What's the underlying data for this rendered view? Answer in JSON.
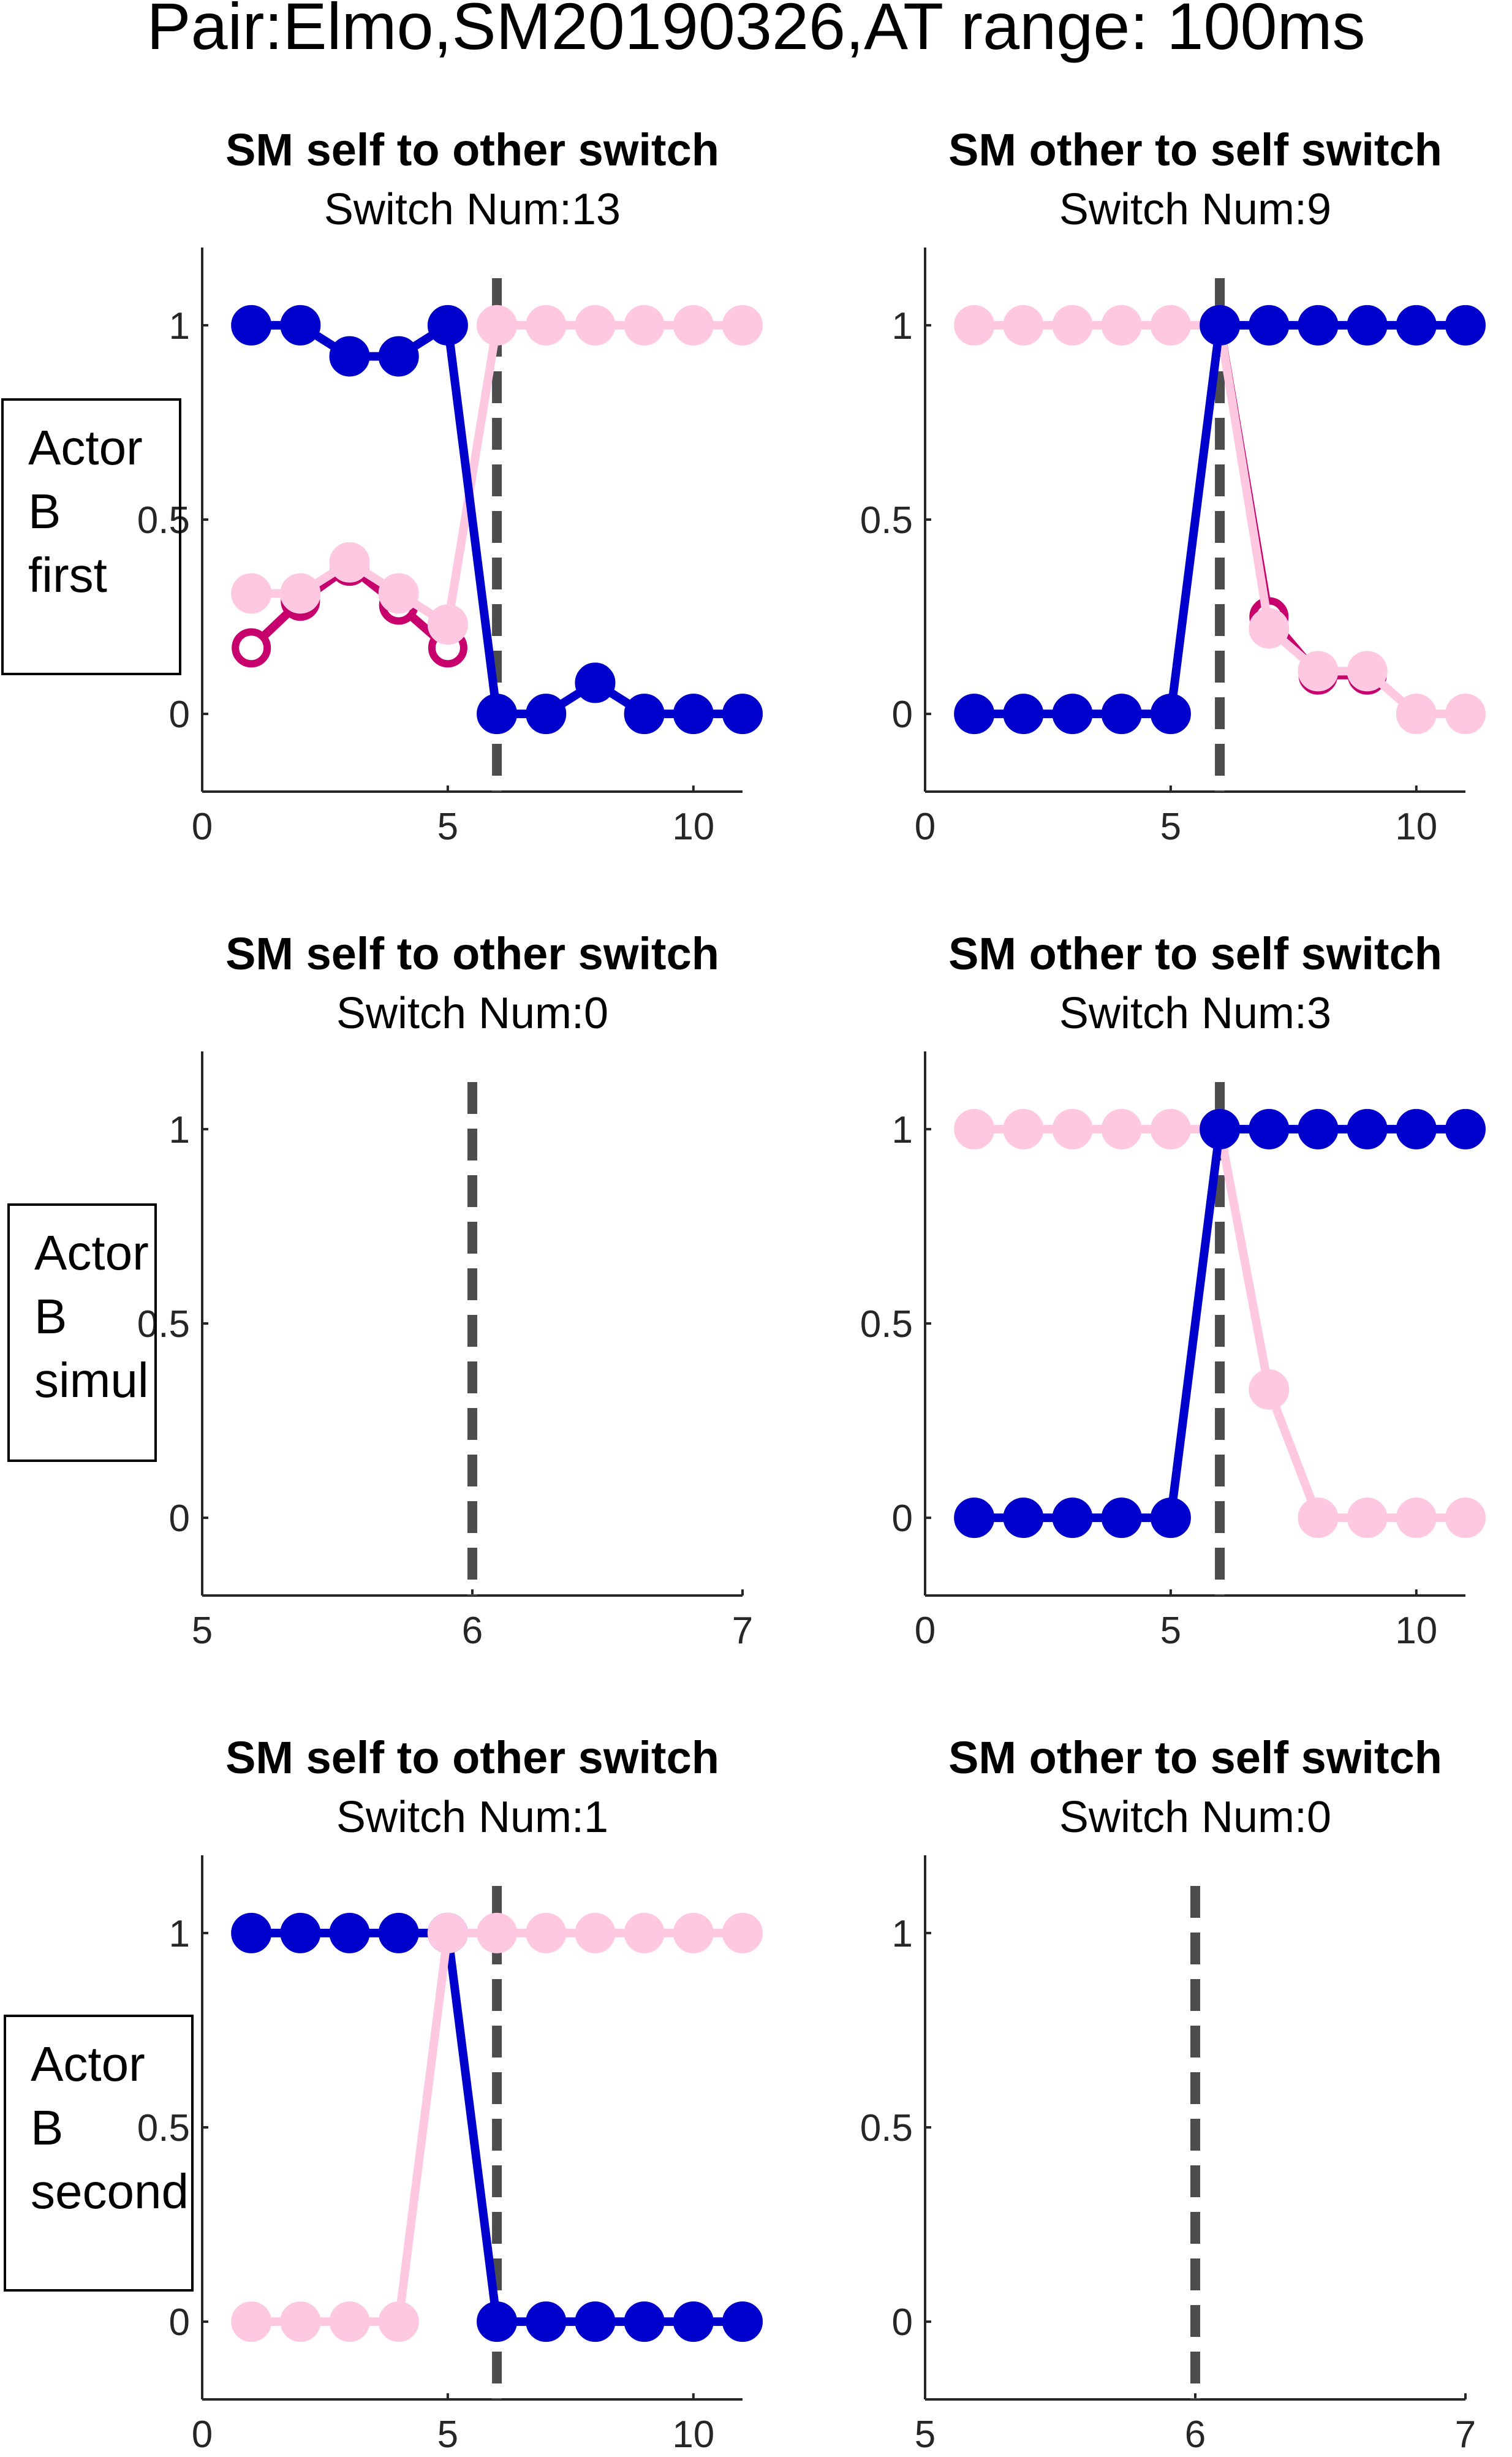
{
  "figure_title": "Pair:Elmo,SM20190326,AT range: 100ms",
  "row_labels": [
    [
      "Actor",
      "B",
      "first"
    ],
    [
      "Actor",
      "B",
      "simul"
    ],
    [
      "Actor",
      "B",
      "second"
    ]
  ],
  "colors": {
    "dark_blue": "#0000cc",
    "light_pink": "#ffc8e1",
    "dark_magenta": "#c8006e",
    "switch_line": "#4d4d4d"
  },
  "chart_data": [
    {
      "type": "line",
      "title": "SM self to other switch",
      "subtitle": "Switch Num:13",
      "xlim": [
        0,
        11
      ],
      "ylim": [
        -0.2,
        1.2
      ],
      "xticks": [
        "0",
        "5",
        "10"
      ],
      "xtick_values": [
        0,
        5,
        10
      ],
      "yticks": [
        "0",
        "0.5",
        "1"
      ],
      "ytick_values": [
        0,
        0.5,
        1
      ],
      "switch_x": 6,
      "series": [
        {
          "color": "dark_magenta",
          "marker": "open",
          "x": [
            1,
            2,
            3,
            4,
            5
          ],
          "y": [
            0.17,
            0.29,
            0.38,
            0.28,
            0.17
          ]
        },
        {
          "color": "light_pink",
          "marker": "filled",
          "x": [
            1,
            2,
            3,
            4,
            5,
            6,
            7,
            8,
            9,
            10,
            11
          ],
          "y": [
            0.31,
            0.31,
            0.39,
            0.31,
            0.23,
            1,
            1,
            1,
            1,
            1,
            1
          ]
        },
        {
          "color": "dark_blue",
          "marker": "filled",
          "x": [
            1,
            2,
            3,
            4,
            5,
            6,
            7,
            8,
            9,
            10,
            11
          ],
          "y": [
            1,
            1,
            0.92,
            0.92,
            1,
            0,
            0,
            0.08,
            0,
            0,
            0
          ]
        }
      ]
    },
    {
      "type": "line",
      "title": "SM other to self switch",
      "subtitle": "Switch Num:9",
      "xlim": [
        0,
        11
      ],
      "ylim": [
        -0.2,
        1.2
      ],
      "xticks": [
        "0",
        "5",
        "10"
      ],
      "xtick_values": [
        0,
        5,
        10
      ],
      "yticks": [
        "0",
        "0.5",
        "1"
      ],
      "ytick_values": [
        0,
        0.5,
        1
      ],
      "switch_x": 6,
      "series": [
        {
          "color": "dark_magenta",
          "marker": "open",
          "x": [
            6,
            7,
            8,
            9
          ],
          "y": [
            1,
            0.25,
            0.1,
            0.1
          ]
        },
        {
          "color": "light_pink",
          "marker": "filled",
          "x": [
            1,
            2,
            3,
            4,
            5,
            6,
            7,
            8,
            9,
            10,
            11
          ],
          "y": [
            1,
            1,
            1,
            1,
            1,
            1,
            0.22,
            0.11,
            0.11,
            0,
            0
          ]
        },
        {
          "color": "dark_blue",
          "marker": "filled",
          "x": [
            1,
            2,
            3,
            4,
            5,
            6,
            7,
            8,
            9,
            10,
            11
          ],
          "y": [
            0,
            0,
            0,
            0,
            0,
            1,
            1,
            1,
            1,
            1,
            1
          ]
        }
      ]
    },
    {
      "type": "line",
      "title": "SM self to other switch",
      "subtitle": "Switch Num:0",
      "xlim": [
        5,
        7
      ],
      "ylim": [
        -0.2,
        1.2
      ],
      "xticks": [
        "5",
        "6",
        "7"
      ],
      "xtick_values": [
        5,
        6,
        7
      ],
      "yticks": [
        "0",
        "0.5",
        "1"
      ],
      "ytick_values": [
        0,
        0.5,
        1
      ],
      "switch_x": 6,
      "series": []
    },
    {
      "type": "line",
      "title": "SM other to self switch",
      "subtitle": "Switch Num:3",
      "xlim": [
        0,
        11
      ],
      "ylim": [
        -0.2,
        1.2
      ],
      "xticks": [
        "0",
        "5",
        "10"
      ],
      "xtick_values": [
        0,
        5,
        10
      ],
      "yticks": [
        "0",
        "0.5",
        "1"
      ],
      "ytick_values": [
        0,
        0.5,
        1
      ],
      "switch_x": 6,
      "series": [
        {
          "color": "light_pink",
          "marker": "filled",
          "x": [
            1,
            2,
            3,
            4,
            5,
            6,
            7,
            8,
            9,
            10,
            11
          ],
          "y": [
            1,
            1,
            1,
            1,
            1,
            1,
            0.33,
            0,
            0,
            0,
            0
          ]
        },
        {
          "color": "dark_blue",
          "marker": "filled",
          "x": [
            1,
            2,
            3,
            4,
            5,
            6,
            7,
            8,
            9,
            10,
            11
          ],
          "y": [
            0,
            0,
            0,
            0,
            0,
            1,
            1,
            1,
            1,
            1,
            1
          ]
        }
      ]
    },
    {
      "type": "line",
      "title": "SM self to other switch",
      "subtitle": "Switch Num:1",
      "xlim": [
        0,
        11
      ],
      "ylim": [
        -0.2,
        1.2
      ],
      "xticks": [
        "0",
        "5",
        "10"
      ],
      "xtick_values": [
        0,
        5,
        10
      ],
      "yticks": [
        "0",
        "0.5",
        "1"
      ],
      "ytick_values": [
        0,
        0.5,
        1
      ],
      "switch_x": 6,
      "series": [
        {
          "color": "dark_blue",
          "marker": "filled",
          "x": [
            1,
            2,
            3,
            4,
            5,
            6,
            7,
            8,
            9,
            10,
            11
          ],
          "y": [
            1,
            1,
            1,
            1,
            1,
            0,
            0,
            0,
            0,
            0,
            0
          ]
        },
        {
          "color": "light_pink",
          "marker": "filled",
          "x": [
            1,
            2,
            3,
            4,
            5,
            6,
            7,
            8,
            9,
            10,
            11
          ],
          "y": [
            0,
            0,
            0,
            0,
            1,
            1,
            1,
            1,
            1,
            1,
            1
          ]
        }
      ]
    },
    {
      "type": "line",
      "title": "SM other to self switch",
      "subtitle": "Switch Num:0",
      "xlim": [
        5,
        7
      ],
      "ylim": [
        -0.2,
        1.2
      ],
      "xticks": [
        "5",
        "6",
        "7"
      ],
      "xtick_values": [
        5,
        6,
        7
      ],
      "yticks": [
        "0",
        "0.5",
        "1"
      ],
      "ytick_values": [
        0,
        0.5,
        1
      ],
      "switch_x": 6,
      "series": []
    }
  ]
}
